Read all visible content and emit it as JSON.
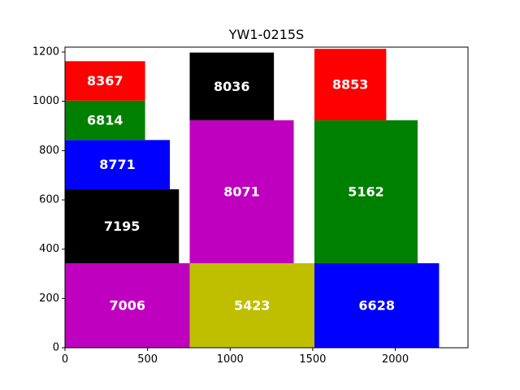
{
  "chart_data": {
    "type": "treemap-rectangles",
    "title": "YW1-0215S",
    "xlabel": "",
    "ylabel": "",
    "xlim": [
      0,
      2440
    ],
    "ylim": [
      0,
      1220
    ],
    "xticks": [
      0,
      500,
      1000,
      1500,
      2000
    ],
    "yticks": [
      0,
      200,
      400,
      600,
      800,
      1000,
      1200
    ],
    "grid": false,
    "rectangles": [
      {
        "label": "7006",
        "x": 0,
        "y": 0,
        "width": 755,
        "height": 343,
        "color": "#bf00bf"
      },
      {
        "label": "5423",
        "x": 755,
        "y": 0,
        "width": 755,
        "height": 343,
        "color": "#bfbf00"
      },
      {
        "label": "6628",
        "x": 1510,
        "y": 0,
        "width": 755,
        "height": 343,
        "color": "#0000ff"
      },
      {
        "label": "7195",
        "x": 0,
        "y": 343,
        "width": 690,
        "height": 300,
        "color": "#000000"
      },
      {
        "label": "8771",
        "x": 0,
        "y": 643,
        "width": 635,
        "height": 200,
        "color": "#0000ff"
      },
      {
        "label": "6814",
        "x": 0,
        "y": 843,
        "width": 485,
        "height": 160,
        "color": "#008000"
      },
      {
        "label": "8367",
        "x": 0,
        "y": 1003,
        "width": 485,
        "height": 160,
        "color": "#ff0000"
      },
      {
        "label": "8071",
        "x": 755,
        "y": 343,
        "width": 630,
        "height": 580,
        "color": "#bf00bf"
      },
      {
        "label": "8036",
        "x": 755,
        "y": 923,
        "width": 510,
        "height": 275,
        "color": "#000000"
      },
      {
        "label": "5162",
        "x": 1510,
        "y": 343,
        "width": 625,
        "height": 580,
        "color": "#008000"
      },
      {
        "label": "8853",
        "x": 1510,
        "y": 923,
        "width": 435,
        "height": 290,
        "color": "#ff0000"
      }
    ]
  }
}
